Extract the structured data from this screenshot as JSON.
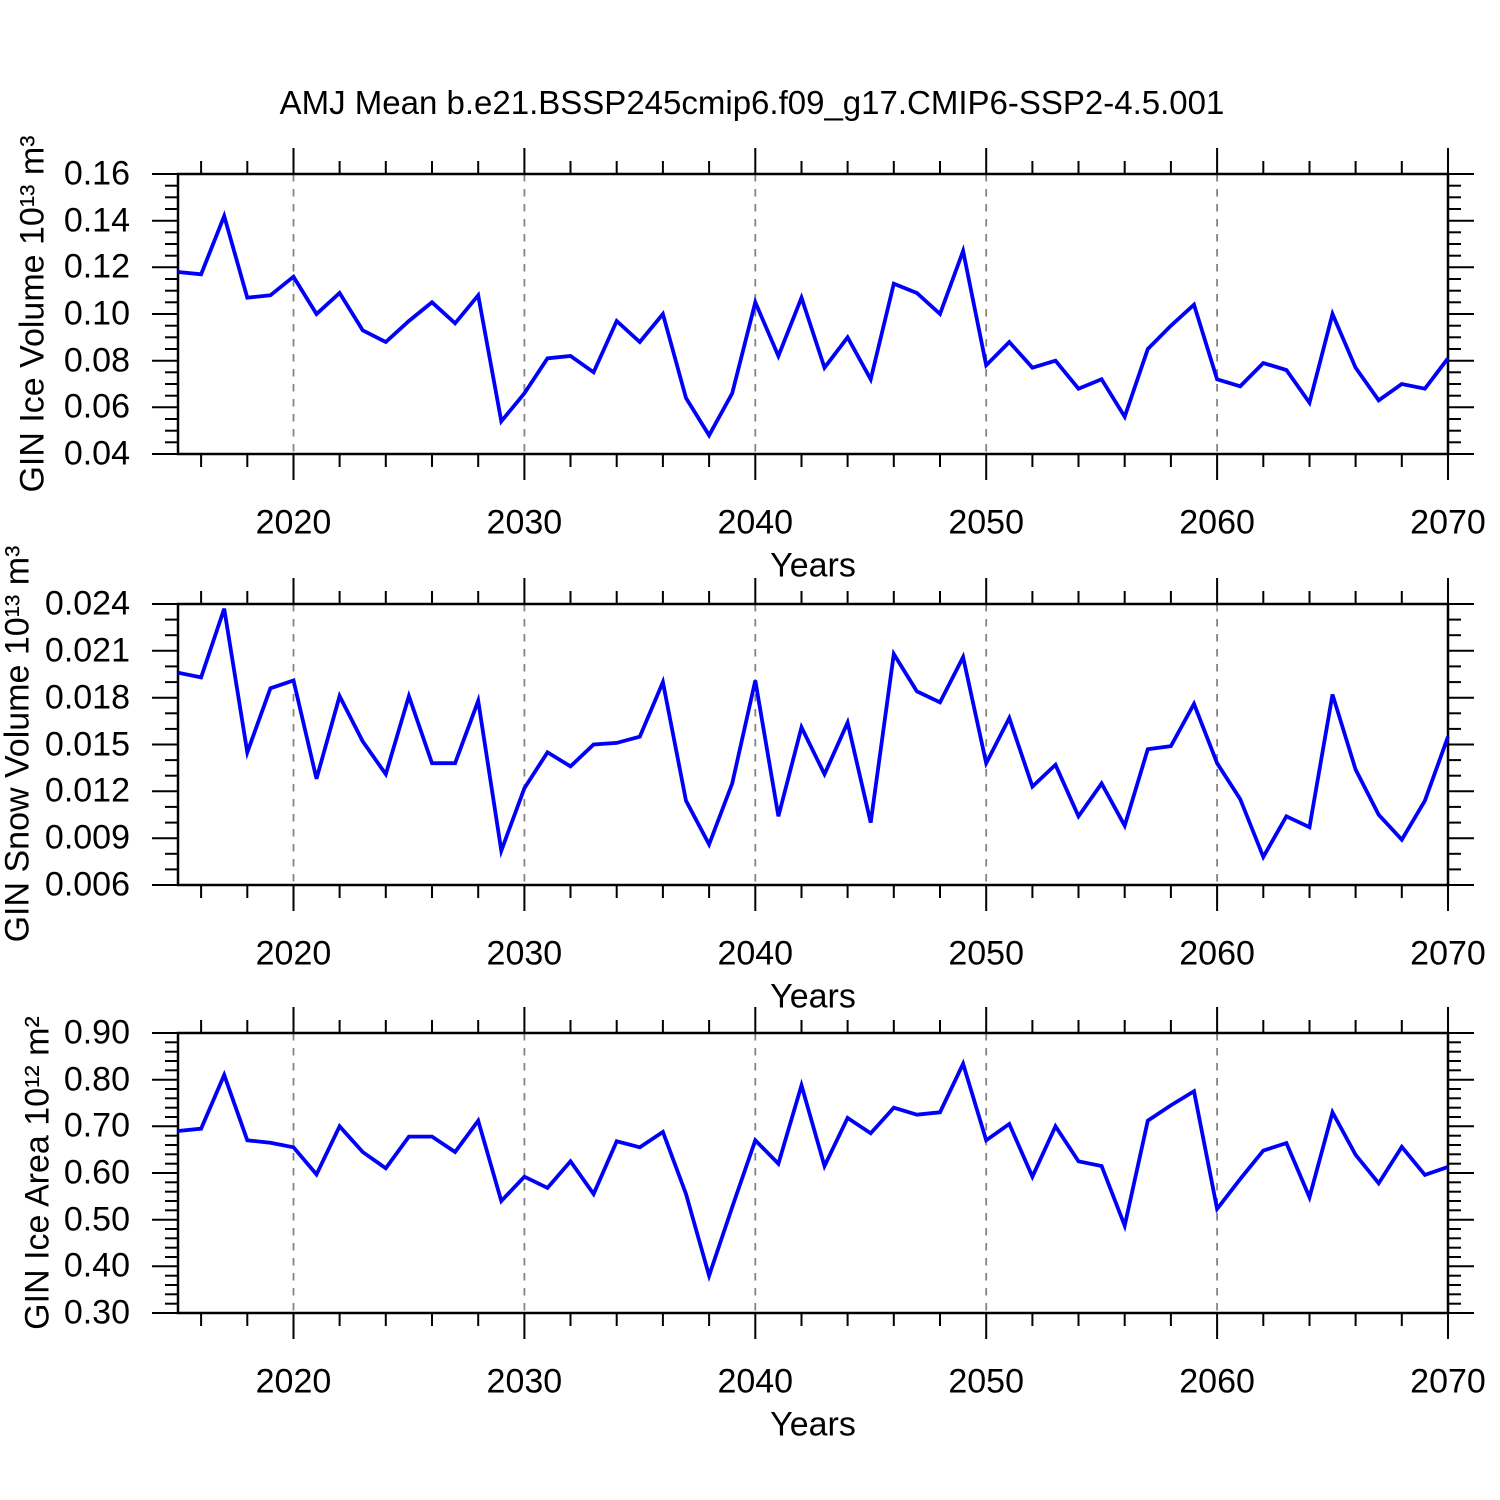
{
  "title": "AMJ Mean b.e21.BSSP245cmip6.f09_g17.CMIP6-SSP2-4.5.001",
  "colors": {
    "line": "#0000FA",
    "grid": "#848484",
    "axis": "#000000",
    "text": "#000000",
    "background": "#FFFFFF"
  },
  "chart_data": [
    {
      "type": "line",
      "ylabel": "GIN Ice Volume 10¹³ m³",
      "xlabel": "Years",
      "ylim": [
        0.04,
        0.16
      ],
      "xlim": [
        2015,
        2070
      ],
      "ytick_values": [
        0.16,
        0.14,
        0.12,
        0.1,
        0.08,
        0.06,
        0.04
      ],
      "ytick_labels": [
        "0.16",
        "0.14",
        "0.12",
        "0.10",
        "0.08",
        "0.06",
        "0.04"
      ],
      "ytick_minor_step": 0.005,
      "xtick_values": [
        2020,
        2030,
        2040,
        2050,
        2060,
        2070
      ],
      "xtick_labels": [
        "2020",
        "2030",
        "2040",
        "2050",
        "2060",
        "2070"
      ],
      "xtick_minor_step": 2,
      "grid_x": [
        2020,
        2030,
        2040,
        2050,
        2060
      ],
      "x": [
        2015,
        2016,
        2017,
        2018,
        2019,
        2020,
        2021,
        2022,
        2023,
        2024,
        2025,
        2026,
        2027,
        2028,
        2029,
        2030,
        2031,
        2032,
        2033,
        2034,
        2035,
        2036,
        2037,
        2038,
        2039,
        2040,
        2041,
        2042,
        2043,
        2044,
        2045,
        2046,
        2047,
        2048,
        2049,
        2050,
        2051,
        2052,
        2053,
        2054,
        2055,
        2056,
        2057,
        2058,
        2059,
        2060,
        2061,
        2062,
        2063,
        2064,
        2065,
        2066,
        2067,
        2068,
        2069,
        2070
      ],
      "values": [
        0.118,
        0.117,
        0.142,
        0.107,
        0.108,
        0.116,
        0.1,
        0.109,
        0.093,
        0.088,
        0.097,
        0.105,
        0.096,
        0.108,
        0.054,
        0.066,
        0.081,
        0.082,
        0.075,
        0.097,
        0.088,
        0.1,
        0.064,
        0.048,
        0.066,
        0.105,
        0.082,
        0.107,
        0.077,
        0.09,
        0.072,
        0.113,
        0.109,
        0.1,
        0.127,
        0.078,
        0.088,
        0.077,
        0.08,
        0.068,
        0.072,
        0.056,
        0.085,
        0.095,
        0.104,
        0.072,
        0.069,
        0.079,
        0.076,
        0.062,
        0.1,
        0.077,
        0.063,
        0.07,
        0.068,
        0.081
      ]
    },
    {
      "type": "line",
      "ylabel": "GIN Snow Volume 10¹³ m³",
      "xlabel": "Years",
      "ylim": [
        0.006,
        0.024
      ],
      "xlim": [
        2015,
        2070
      ],
      "ytick_values": [
        0.024,
        0.021,
        0.018,
        0.015,
        0.012,
        0.009,
        0.006
      ],
      "ytick_labels": [
        "0.024",
        "0.021",
        "0.018",
        "0.015",
        "0.012",
        "0.009",
        "0.006"
      ],
      "ytick_minor_step": 0.001,
      "xtick_values": [
        2020,
        2030,
        2040,
        2050,
        2060,
        2070
      ],
      "xtick_labels": [
        "2020",
        "2030",
        "2040",
        "2050",
        "2060",
        "2070"
      ],
      "xtick_minor_step": 2,
      "grid_x": [
        2020,
        2030,
        2040,
        2050,
        2060
      ],
      "x": [
        2015,
        2016,
        2017,
        2018,
        2019,
        2020,
        2021,
        2022,
        2023,
        2024,
        2025,
        2026,
        2027,
        2028,
        2029,
        2030,
        2031,
        2032,
        2033,
        2034,
        2035,
        2036,
        2037,
        2038,
        2039,
        2040,
        2041,
        2042,
        2043,
        2044,
        2045,
        2046,
        2047,
        2048,
        2049,
        2050,
        2051,
        2052,
        2053,
        2054,
        2055,
        2056,
        2057,
        2058,
        2059,
        2060,
        2061,
        2062,
        2063,
        2064,
        2065,
        2066,
        2067,
        2068,
        2069,
        2070
      ],
      "values": [
        0.0196,
        0.0193,
        0.0237,
        0.0145,
        0.0186,
        0.0191,
        0.0128,
        0.0181,
        0.0152,
        0.0131,
        0.0181,
        0.0138,
        0.0138,
        0.0178,
        0.0082,
        0.0122,
        0.0145,
        0.0136,
        0.015,
        0.0151,
        0.0155,
        0.019,
        0.0114,
        0.0086,
        0.0125,
        0.0191,
        0.0104,
        0.0161,
        0.0131,
        0.0164,
        0.01,
        0.0208,
        0.0184,
        0.0177,
        0.0206,
        0.0138,
        0.0167,
        0.0123,
        0.0137,
        0.0104,
        0.0125,
        0.0098,
        0.0147,
        0.0149,
        0.0176,
        0.0138,
        0.0115,
        0.0078,
        0.0104,
        0.0097,
        0.0182,
        0.0134,
        0.0105,
        0.0089,
        0.0114,
        0.0155
      ]
    },
    {
      "type": "line",
      "ylabel": "GIN Ice Area 10¹² m²",
      "xlabel": "Years",
      "ylim": [
        0.3,
        0.9
      ],
      "xlim": [
        2015,
        2070
      ],
      "ytick_values": [
        0.9,
        0.8,
        0.7,
        0.6,
        0.5,
        0.4,
        0.3
      ],
      "ytick_labels": [
        "0.90",
        "0.80",
        "0.70",
        "0.60",
        "0.50",
        "0.40",
        "0.30"
      ],
      "ytick_minor_step": 0.02,
      "xtick_values": [
        2020,
        2030,
        2040,
        2050,
        2060,
        2070
      ],
      "xtick_labels": [
        "2020",
        "2030",
        "2040",
        "2050",
        "2060",
        "2070"
      ],
      "xtick_minor_step": 2,
      "grid_x": [
        2020,
        2030,
        2040,
        2050,
        2060
      ],
      "x": [
        2015,
        2016,
        2017,
        2018,
        2019,
        2020,
        2021,
        2022,
        2023,
        2024,
        2025,
        2026,
        2027,
        2028,
        2029,
        2030,
        2031,
        2032,
        2033,
        2034,
        2035,
        2036,
        2037,
        2038,
        2039,
        2040,
        2041,
        2042,
        2043,
        2044,
        2045,
        2046,
        2047,
        2048,
        2049,
        2050,
        2051,
        2052,
        2053,
        2054,
        2055,
        2056,
        2057,
        2058,
        2059,
        2060,
        2061,
        2062,
        2063,
        2064,
        2065,
        2066,
        2067,
        2068,
        2069,
        2070
      ],
      "values": [
        0.69,
        0.695,
        0.81,
        0.67,
        0.665,
        0.655,
        0.597,
        0.7,
        0.645,
        0.61,
        0.678,
        0.678,
        0.645,
        0.712,
        0.54,
        0.592,
        0.568,
        0.625,
        0.555,
        0.668,
        0.655,
        0.688,
        0.555,
        0.38,
        0.527,
        0.67,
        0.62,
        0.788,
        0.615,
        0.718,
        0.685,
        0.74,
        0.725,
        0.73,
        0.834,
        0.67,
        0.705,
        0.592,
        0.7,
        0.625,
        0.615,
        0.487,
        0.712,
        0.745,
        0.775,
        0.523,
        0.587,
        0.648,
        0.664,
        0.548,
        0.73,
        0.639,
        0.578,
        0.656,
        0.596,
        0.613
      ]
    }
  ]
}
